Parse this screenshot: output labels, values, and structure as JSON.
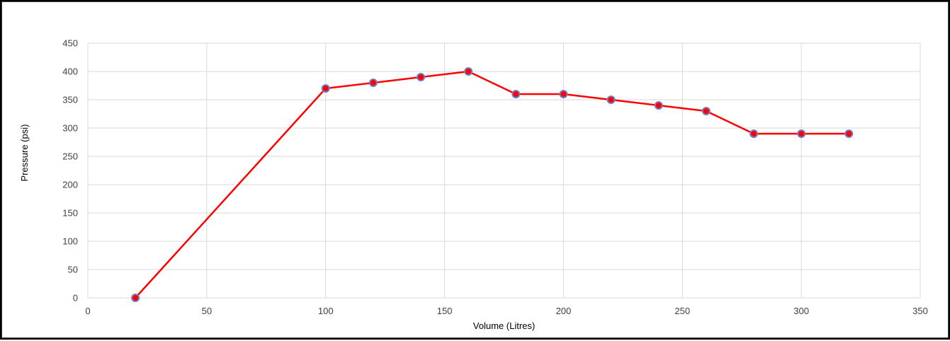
{
  "chart_data": {
    "type": "line",
    "title": "",
    "xlabel": "Volume (Litres)",
    "ylabel": "Pressure (psi)",
    "xlim": [
      0,
      350
    ],
    "ylim": [
      0,
      450
    ],
    "xticks": [
      0,
      50,
      100,
      150,
      200,
      250,
      300,
      350
    ],
    "yticks": [
      0,
      50,
      100,
      150,
      200,
      250,
      300,
      350,
      400,
      450
    ],
    "grid": true,
    "legend": "none",
    "series": [
      {
        "color": "#ff0000",
        "marker_color": "#ff0000",
        "marker_edge_color": "#6f7fc8",
        "x": [
          20,
          100,
          120,
          140,
          160,
          180,
          200,
          220,
          240,
          260,
          280,
          300,
          320
        ],
        "y": [
          0,
          370,
          380,
          390,
          400,
          360,
          360,
          350,
          340,
          330,
          290,
          290,
          290
        ]
      }
    ]
  }
}
